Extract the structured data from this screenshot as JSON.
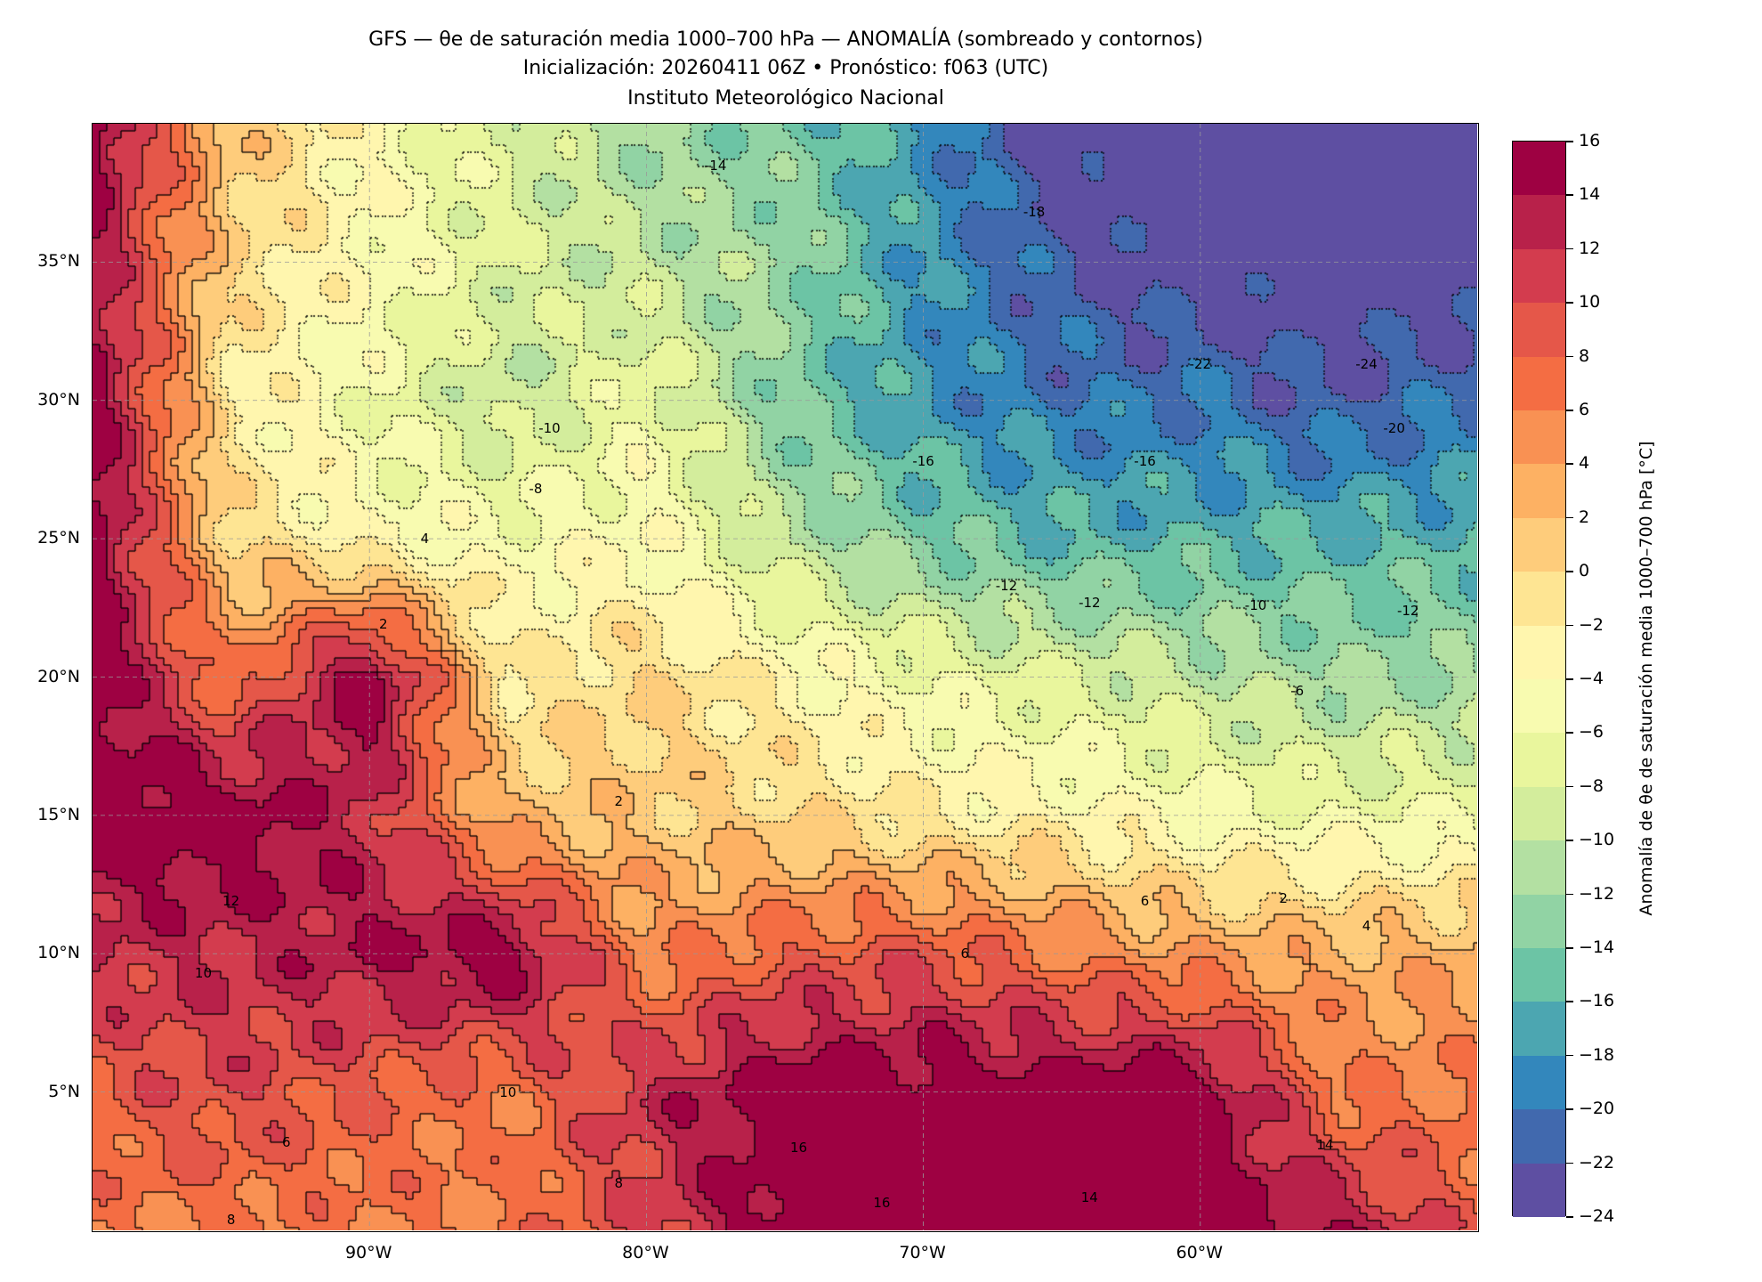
{
  "title": {
    "line1": "GFS — θe de saturación media 1000–700 hPa — ANOMALÍA (sombreado y contornos)",
    "line2": "Inicialización: 20260411 06Z   •   Pronóstico: f063 (UTC)",
    "line3": "Instituto Meteorológico Nacional"
  },
  "chart_data": {
    "type": "heatmap",
    "title": "GFS — θe de saturación media 1000–700 hPa — ANOMALÍA (sombreado y contornos)",
    "xlabel": "",
    "ylabel": "",
    "xlim": [
      -100,
      -50
    ],
    "ylim": [
      0,
      40
    ],
    "grid": true,
    "x_ticks": [
      {
        "value": -90,
        "label": "90°W"
      },
      {
        "value": -80,
        "label": "80°W"
      },
      {
        "value": -70,
        "label": "70°W"
      },
      {
        "value": -60,
        "label": "60°W"
      }
    ],
    "y_ticks": [
      {
        "value": 35,
        "label": "35°N"
      },
      {
        "value": 30,
        "label": "30°N"
      },
      {
        "value": 25,
        "label": "25°N"
      },
      {
        "value": 20,
        "label": "20°N"
      },
      {
        "value": 15,
        "label": "15°N"
      },
      {
        "value": 10,
        "label": "10°N"
      },
      {
        "value": 5,
        "label": "5°N"
      }
    ],
    "grid_lon": [
      -100,
      -95,
      -90,
      -85,
      -80,
      -75,
      -70,
      -65,
      -60,
      -55,
      -50
    ],
    "grid_lat": [
      40,
      35,
      30,
      25,
      20,
      15,
      10,
      5,
      0
    ],
    "values": [
      [
        16,
        2,
        -4,
        -8,
        -12,
        -14,
        -18,
        -24,
        -24,
        -24,
        -24
      ],
      [
        14,
        0,
        -4,
        -8,
        -10,
        -12,
        -18,
        -22,
        -24,
        -24,
        -24
      ],
      [
        16,
        -2,
        -6,
        -10,
        -6,
        -14,
        -18,
        -20,
        -20,
        -22,
        -20
      ],
      [
        16,
        0,
        -4,
        -5,
        -4,
        -10,
        -14,
        -16,
        -16,
        -16,
        -16
      ],
      [
        16,
        6,
        16,
        -2,
        0,
        -3,
        -6,
        -8,
        -10,
        -12,
        -12
      ],
      [
        16,
        16,
        12,
        2,
        1,
        0,
        -2,
        -3,
        -5,
        -6,
        -6
      ],
      [
        12,
        12,
        14,
        16,
        5,
        8,
        9,
        6,
        4,
        3,
        3
      ],
      [
        8,
        10,
        8,
        6,
        12,
        16,
        16,
        16,
        16,
        6,
        6
      ],
      [
        6,
        6,
        6,
        6,
        10,
        16,
        16,
        16,
        16,
        14,
        8
      ]
    ],
    "contour_labels": [
      {
        "lon": -77.5,
        "lat": 38.5,
        "text": "-14"
      },
      {
        "lon": -66.0,
        "lat": 36.8,
        "text": "-18"
      },
      {
        "lon": -60.0,
        "lat": 31.3,
        "text": "-22"
      },
      {
        "lon": -54.0,
        "lat": 31.3,
        "text": "-24"
      },
      {
        "lon": -53.0,
        "lat": 29.0,
        "text": "-20"
      },
      {
        "lon": -70.0,
        "lat": 27.8,
        "text": "-16"
      },
      {
        "lon": -62.0,
        "lat": 27.8,
        "text": "-16"
      },
      {
        "lon": -83.5,
        "lat": 29.0,
        "text": "-10"
      },
      {
        "lon": -84.0,
        "lat": 26.8,
        "text": "-8"
      },
      {
        "lon": -67.0,
        "lat": 23.3,
        "text": "-12"
      },
      {
        "lon": -64.0,
        "lat": 22.7,
        "text": "-12"
      },
      {
        "lon": -58.0,
        "lat": 22.6,
        "text": "-10"
      },
      {
        "lon": -52.5,
        "lat": 22.4,
        "text": "-12"
      },
      {
        "lon": -56.5,
        "lat": 19.5,
        "text": "-6"
      },
      {
        "lon": -88.0,
        "lat": 25.0,
        "text": "4"
      },
      {
        "lon": -89.5,
        "lat": 21.9,
        "text": "2"
      },
      {
        "lon": -81.0,
        "lat": 15.5,
        "text": "2"
      },
      {
        "lon": -57.0,
        "lat": 12.0,
        "text": "2"
      },
      {
        "lon": -54.0,
        "lat": 11.0,
        "text": "4"
      },
      {
        "lon": -62.0,
        "lat": 11.9,
        "text": "6"
      },
      {
        "lon": -68.5,
        "lat": 10.0,
        "text": "6"
      },
      {
        "lon": -95.0,
        "lat": 11.9,
        "text": "12"
      },
      {
        "lon": -96.0,
        "lat": 9.3,
        "text": "10"
      },
      {
        "lon": -85.0,
        "lat": 5.0,
        "text": "10"
      },
      {
        "lon": -74.5,
        "lat": 3.0,
        "text": "16"
      },
      {
        "lon": -71.5,
        "lat": 1.0,
        "text": "16"
      },
      {
        "lon": -64.0,
        "lat": 1.2,
        "text": "14"
      },
      {
        "lon": -55.5,
        "lat": 3.1,
        "text": "14"
      },
      {
        "lon": -93.0,
        "lat": 3.2,
        "text": "6"
      },
      {
        "lon": -81.0,
        "lat": 1.7,
        "text": "8"
      },
      {
        "lon": -95.0,
        "lat": 0.4,
        "text": "8"
      }
    ],
    "colorbar": {
      "label": "Anomalía de θe de saturación media 1000–700 hPa [°C]",
      "levels": [
        16,
        14,
        12,
        10,
        8,
        6,
        4,
        2,
        0,
        -2,
        -4,
        -6,
        -8,
        -10,
        -12,
        -14,
        -16,
        -18,
        -20,
        -22,
        -24
      ],
      "tick_labels": [
        "16",
        "14",
        "12",
        "10",
        "8",
        "6",
        "4",
        "2",
        "0",
        "−2",
        "−4",
        "−6",
        "−8",
        "−10",
        "−12",
        "−14",
        "−16",
        "−18",
        "−20",
        "−22",
        "−24"
      ],
      "colors": [
        "#9e0142",
        "#b8214a",
        "#d33c4e",
        "#e55749",
        "#f46d43",
        "#f99153",
        "#fdb163",
        "#fecc7b",
        "#fee593",
        "#fff6ae",
        "#f8fbb0",
        "#e9f69d",
        "#d3ed9c",
        "#b3e0a2",
        "#91d3a4",
        "#6cc4a5",
        "#4ca6b1",
        "#3387bc",
        "#4169ae",
        "#5e4fa2"
      ]
    }
  }
}
